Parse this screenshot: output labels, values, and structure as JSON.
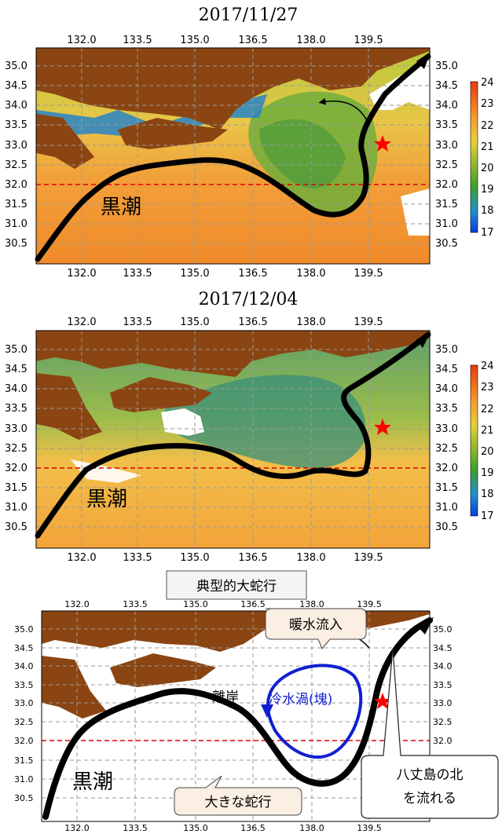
{
  "panel1": {
    "date": "2017/11/27",
    "stream_label": "黒潮"
  },
  "panel2": {
    "date": "2017/12/04",
    "stream_label": "黒潮"
  },
  "section_label": "典型的大蛇行",
  "panel3": {
    "stream_label": "黒潮",
    "warm_inflow": "暖水流入",
    "cold_eddy": "冷水渦(塊)",
    "offshore": "離岸",
    "big_meander": "大きな蛇行",
    "hachijo_line1": "八丈島の北",
    "hachijo_line2": "を流れる"
  },
  "axes": {
    "x_ticks": [
      "132.0",
      "133.5",
      "135.0",
      "136.5",
      "138.0",
      "139.5"
    ],
    "y_ticks": [
      "35.0",
      "34.5",
      "34.0",
      "33.5",
      "33.0",
      "32.5",
      "32.0",
      "31.5",
      "31.0",
      "30.5"
    ]
  },
  "colorbar": {
    "ticks": [
      "24",
      "23",
      "22",
      "21",
      "20",
      "19",
      "18",
      "17"
    ],
    "min": 17,
    "max": 24,
    "colors": [
      "#0a3ce0",
      "#1f8fd0",
      "#3aa02a",
      "#90b82a",
      "#e6d03a",
      "#f5a02a",
      "#f06a18",
      "#e83a10"
    ]
  },
  "colors": {
    "land": "#8b4513",
    "warm": "#f29a3a",
    "cool": "#6fae3a",
    "cold_blue": "#1040e8",
    "stream": "#000000",
    "ref_line": "#e00000",
    "star": "#ff0000",
    "eddy": "#1020d0",
    "callout_fill": "#fbeee2"
  }
}
